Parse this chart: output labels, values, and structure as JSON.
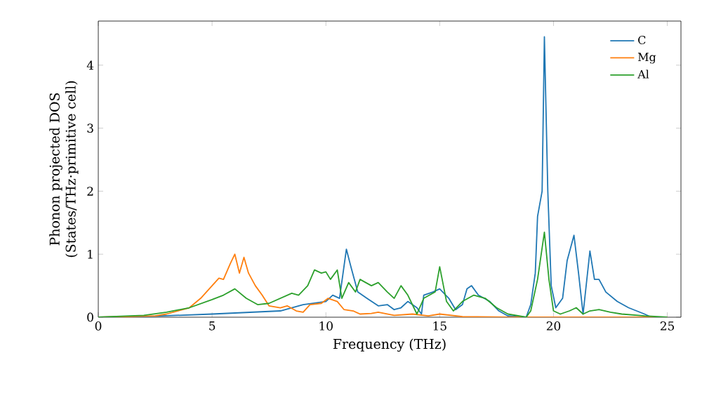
{
  "chart_data": {
    "type": "line",
    "xlabel": "Frequency (THz)",
    "ylabel": "Phonon projected DOS\n(States/THz·primitive cell)",
    "xlim": [
      0,
      25.6
    ],
    "ylim": [
      0,
      4.7
    ],
    "xticks": [
      0,
      5,
      10,
      15,
      20,
      25
    ],
    "yticks": [
      0,
      1,
      2,
      3,
      4
    ],
    "legend": "top right",
    "grid": false,
    "marker": "none",
    "line_style": "solid",
    "series": [
      {
        "name": "C",
        "color": "#1f77b4",
        "x": [
          0,
          2,
          5,
          8,
          9,
          10,
          10.3,
          10.6,
          10.9,
          11.1,
          11.4,
          11.8,
          12.3,
          12.7,
          13,
          13.3,
          13.6,
          14,
          14.2,
          14.3,
          14.7,
          15,
          15.4,
          15.7,
          16,
          16.2,
          16.4,
          16.7,
          17.2,
          17.6,
          18,
          18.8,
          19.0,
          19.2,
          19.3,
          19.5,
          19.6,
          19.75,
          19.9,
          20.1,
          20.4,
          20.6,
          20.9,
          21.1,
          21.3,
          21.6,
          21.8,
          22.0,
          22.3,
          22.8,
          23.3,
          24,
          24.3
        ],
        "values": [
          0,
          0.01,
          0.05,
          0.1,
          0.2,
          0.25,
          0.35,
          0.3,
          1.08,
          0.8,
          0.4,
          0.3,
          0.18,
          0.2,
          0.12,
          0.15,
          0.25,
          0.15,
          0.05,
          0.35,
          0.4,
          0.45,
          0.3,
          0.12,
          0.2,
          0.45,
          0.5,
          0.35,
          0.25,
          0.1,
          0.02,
          0,
          0.2,
          0.7,
          1.6,
          2.0,
          4.45,
          2.0,
          0.5,
          0.15,
          0.3,
          0.9,
          1.3,
          0.7,
          0.05,
          1.05,
          0.6,
          0.6,
          0.4,
          0.25,
          0.15,
          0.05,
          0
        ]
      },
      {
        "name": "Mg",
        "color": "#ff7f0e",
        "x": [
          0,
          2.5,
          3,
          4,
          4.5,
          5,
          5.3,
          5.5,
          5.8,
          6.0,
          6.2,
          6.4,
          6.6,
          6.9,
          7.2,
          7.5,
          8.0,
          8.3,
          8.7,
          9.0,
          9.3,
          9.8,
          10.1,
          10.5,
          10.8,
          11.2,
          11.5,
          12,
          12.3,
          13,
          13.8,
          14.5,
          15,
          16,
          18,
          25
        ],
        "values": [
          0,
          0.02,
          0.05,
          0.15,
          0.3,
          0.5,
          0.62,
          0.6,
          0.85,
          1.0,
          0.7,
          0.95,
          0.7,
          0.5,
          0.35,
          0.18,
          0.15,
          0.18,
          0.1,
          0.08,
          0.2,
          0.22,
          0.3,
          0.25,
          0.12,
          0.1,
          0.05,
          0.06,
          0.08,
          0.03,
          0.05,
          0.02,
          0.05,
          0.01,
          0,
          0
        ]
      },
      {
        "name": "Al",
        "color": "#2ca02c",
        "x": [
          0,
          2,
          3,
          4,
          5,
          5.5,
          6,
          6.5,
          7,
          7.5,
          8,
          8.5,
          8.8,
          9.2,
          9.5,
          9.8,
          10,
          10.2,
          10.5,
          10.7,
          11,
          11.3,
          11.5,
          12,
          12.3,
          12.7,
          13,
          13.3,
          13.6,
          14,
          14.3,
          14.8,
          15,
          15.3,
          15.6,
          16,
          16.5,
          17,
          17.5,
          18,
          18.8,
          19,
          19.3,
          19.6,
          19.8,
          20.0,
          20.3,
          20.7,
          21,
          21.3,
          21.6,
          22,
          22.5,
          23,
          24,
          25
        ],
        "values": [
          0,
          0.03,
          0.08,
          0.15,
          0.28,
          0.35,
          0.45,
          0.3,
          0.2,
          0.22,
          0.3,
          0.38,
          0.35,
          0.5,
          0.75,
          0.7,
          0.72,
          0.6,
          0.75,
          0.3,
          0.55,
          0.4,
          0.6,
          0.5,
          0.55,
          0.4,
          0.3,
          0.5,
          0.35,
          0.05,
          0.3,
          0.4,
          0.8,
          0.25,
          0.1,
          0.25,
          0.35,
          0.3,
          0.15,
          0.05,
          0,
          0.1,
          0.6,
          1.35,
          0.6,
          0.1,
          0.05,
          0.1,
          0.15,
          0.05,
          0.1,
          0.12,
          0.08,
          0.05,
          0.02,
          0
        ]
      }
    ]
  }
}
